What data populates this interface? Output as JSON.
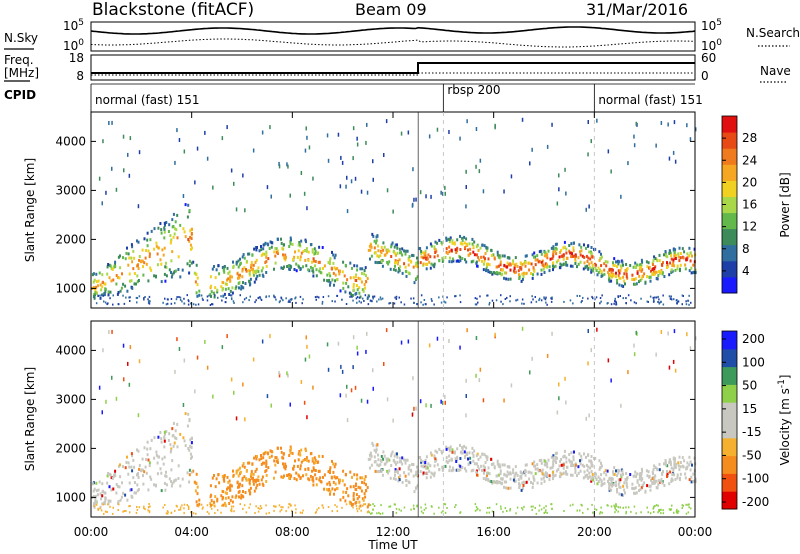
{
  "header": {
    "station": "Blackstone (fitACF)",
    "beam": "Beam 09",
    "date": "31/Mar/2016"
  },
  "colors": {
    "power": [
      "#1a1aff",
      "#1f3fa8",
      "#2f6e9e",
      "#3d8a5a",
      "#62b84b",
      "#a8d84a",
      "#f0d020",
      "#f5a623",
      "#f07a1e",
      "#e84a15",
      "#e01010"
    ],
    "velocity": [
      "#e00000",
      "#f05010",
      "#f58c1e",
      "#f5b030",
      "#c8c8c0",
      "#c8c8c0",
      "#8ed04a",
      "#3e9a5a",
      "#1f4ea8",
      "#1a1aff"
    ]
  },
  "chart_data": [
    {
      "type": "line",
      "name": "nsky-nsearch-panel",
      "left_labels": [
        "N.Sky"
      ],
      "right_labels": [
        "N.Search"
      ],
      "y_ticks": [
        "10^5",
        "10^0"
      ],
      "y_ticks_right": [
        "10^5",
        "10^0"
      ],
      "scale": "log"
    },
    {
      "type": "line",
      "name": "freq-nave-panel",
      "left_labels": [
        "Freq.",
        "[MHz]"
      ],
      "right_labels": [
        "Nave"
      ],
      "y_ticks": [
        "18",
        "8"
      ],
      "y_ticks_right": [
        "60",
        "0"
      ]
    },
    {
      "type": "table",
      "name": "cpid-panel",
      "label": "CPID",
      "segments": [
        {
          "start_hour": 0,
          "end_hour": 13,
          "label": "normal (fast) 151"
        },
        {
          "start_hour": 14,
          "end_hour": 20,
          "label": "rbsp 200"
        },
        {
          "start_hour": 20,
          "end_hour": 24,
          "label": "normal (fast) 151"
        }
      ]
    },
    {
      "type": "heatmap",
      "name": "power-panel",
      "ylabel": "Slant Range [km]",
      "y_ticks": [
        1000,
        2000,
        3000,
        4000
      ],
      "ylim": [
        600,
        4600
      ],
      "xlim_hours": [
        0,
        24
      ],
      "colorbar": {
        "label": "Power [dB]",
        "ticks": [
          4,
          8,
          12,
          16,
          20,
          24,
          28
        ],
        "range": [
          0,
          32
        ]
      },
      "features": [
        {
          "desc": "main band",
          "hours": [
            0,
            4
          ],
          "range_km": [
            1000,
            2700
          ]
        },
        {
          "desc": "patchy echoes",
          "hours": [
            4,
            11
          ],
          "range_km": [
            1100,
            2000
          ]
        },
        {
          "desc": "strong band",
          "hours": [
            13,
            24
          ],
          "range_km": [
            1400,
            2100
          ]
        }
      ]
    },
    {
      "type": "heatmap",
      "name": "velocity-panel",
      "ylabel": "Slant Range [km]",
      "y_ticks": [
        1000,
        2000,
        3000,
        4000
      ],
      "ylim": [
        600,
        4600
      ],
      "xlim_hours": [
        0,
        24
      ],
      "colorbar": {
        "label": "Velocity [m s^-1]",
        "ticks": [
          200,
          100,
          50,
          15,
          -15,
          -50,
          -100,
          -200
        ]
      }
    }
  ],
  "x_axis": {
    "ticks": [
      "00:00",
      "04:00",
      "08:00",
      "12:00",
      "16:00",
      "20:00",
      "00:00"
    ],
    "label": "Time UT"
  }
}
